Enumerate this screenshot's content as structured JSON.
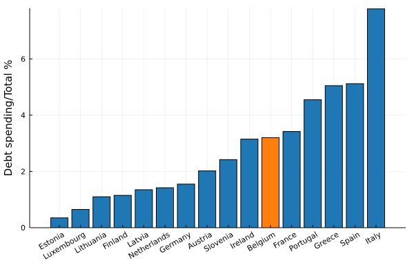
{
  "chart_data": {
    "type": "bar",
    "title": "",
    "xlabel": "",
    "ylabel": "Debt spending/Total %",
    "categories": [
      "Estonia",
      "Luxembourg",
      "Lithuania",
      "Finland",
      "Latvia",
      "Netherlands",
      "Germany",
      "Austria",
      "Slovenia",
      "Ireland",
      "Belgium",
      "France",
      "Portugal",
      "Greece",
      "Spain",
      "Italy"
    ],
    "values": [
      0.35,
      0.65,
      1.1,
      1.15,
      1.35,
      1.42,
      1.55,
      2.02,
      2.42,
      3.15,
      3.2,
      3.42,
      4.55,
      5.05,
      5.12,
      7.78
    ],
    "ylim": [
      0,
      7.8
    ],
    "yticks": [
      0,
      2,
      4,
      6
    ],
    "ytick_labels": [
      "0",
      "2",
      "4",
      "6"
    ],
    "grid": true,
    "legend": "none",
    "bar_color": "#1f77b4",
    "highlight": {
      "category": "Belgium",
      "color": "#ff7f0e"
    }
  }
}
